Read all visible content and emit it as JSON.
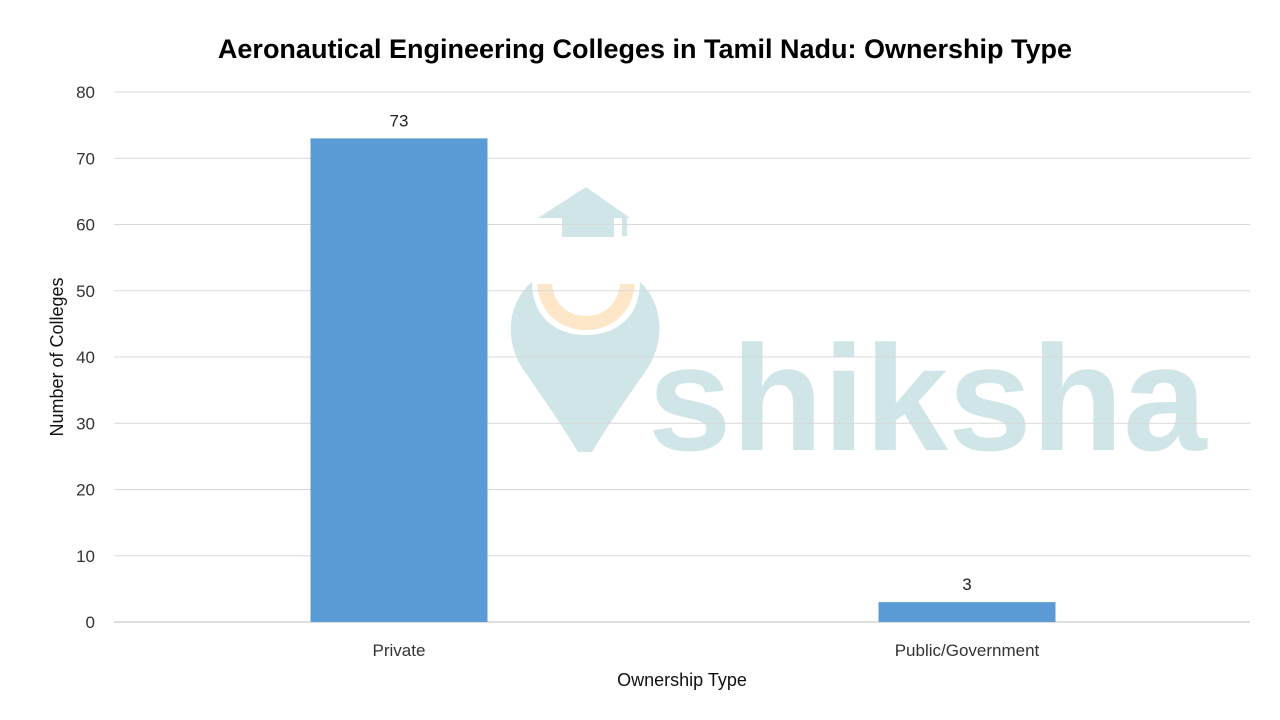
{
  "chart_data": {
    "type": "bar",
    "title": "Aeronautical Engineering Colleges in Tamil Nadu: Ownership Type",
    "xlabel": "Ownership Type",
    "ylabel": "Number of Colleges",
    "categories": [
      "Private",
      "Public/Government"
    ],
    "values": [
      73,
      3
    ],
    "data_labels": [
      "73",
      "3"
    ],
    "ylim": [
      0,
      80
    ],
    "yticks": [
      "0",
      "10",
      "20",
      "30",
      "40",
      "50",
      "60",
      "70",
      "80"
    ],
    "grid": true,
    "legend": "none",
    "bar_color": "#5b9bd5"
  },
  "watermark": {
    "text": "shiksha",
    "color": "#cfe5e7",
    "accent": "#fde7c8"
  }
}
